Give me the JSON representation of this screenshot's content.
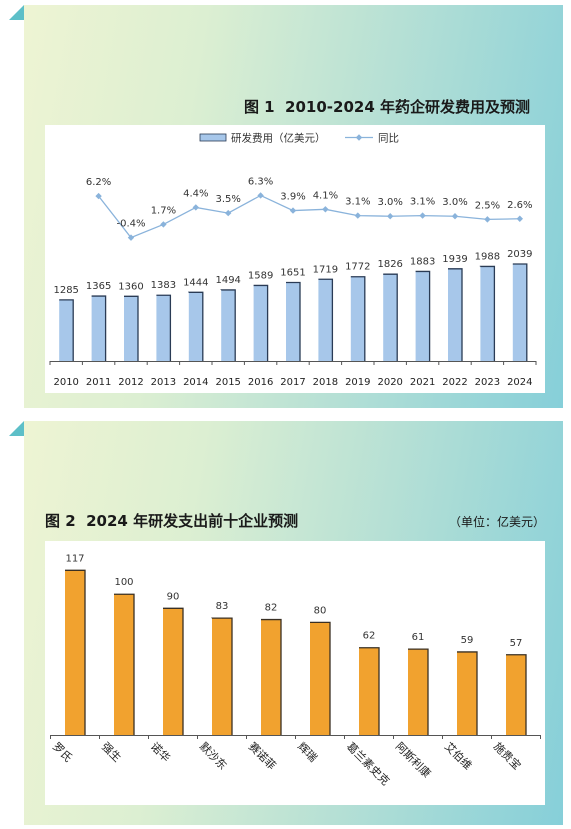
{
  "colors": {
    "bar_blue": "#a7c7ea",
    "bar_edge": "#2a3b55",
    "line_blue": "#8ab3db",
    "bar_orange": "#f1a22f",
    "bar_edge_orange": "#3a3024",
    "corner_teal": "#5dbfc8",
    "axis": "#555555"
  },
  "chart_data": [
    {
      "type": "bar",
      "title": "图 1  2010-2024 年药企研发费用及预测",
      "categories": [
        "2010",
        "2011",
        "2012",
        "2013",
        "2014",
        "2015",
        "2016",
        "2017",
        "2018",
        "2019",
        "2020",
        "2021",
        "2022",
        "2023",
        "2024"
      ],
      "series": [
        {
          "name": "研发费用（亿美元）",
          "type": "bar",
          "values": [
            1285,
            1365,
            1360,
            1383,
            1444,
            1494,
            1589,
            1651,
            1719,
            1772,
            1826,
            1883,
            1939,
            1988,
            2039
          ]
        },
        {
          "name": "同比",
          "type": "line",
          "unit": "%",
          "values": [
            null,
            6.2,
            -0.4,
            1.7,
            4.4,
            3.5,
            6.3,
            3.9,
            4.1,
            3.1,
            3.0,
            3.1,
            3.0,
            2.5,
            2.6
          ]
        }
      ],
      "y_range": [
        0,
        4500
      ],
      "y2_range": [
        -20,
        14
      ],
      "legend_position": "top",
      "grid": false,
      "data_labels": true
    },
    {
      "type": "bar",
      "title": "图 2  2024 年研发支出前十企业预测",
      "unit_note": "（单位：亿美元）",
      "categories": [
        "罗氏",
        "强生",
        "诺华",
        "默沙东",
        "赛诺菲",
        "辉瑞",
        "葛兰素史克",
        "阿斯利康",
        "艾伯维",
        "施贵宝"
      ],
      "values": [
        117,
        100,
        90,
        83,
        82,
        80,
        62,
        61,
        59,
        57
      ],
      "y_range": [
        0,
        130
      ],
      "legend_position": "none",
      "grid": false,
      "data_labels": true
    }
  ]
}
